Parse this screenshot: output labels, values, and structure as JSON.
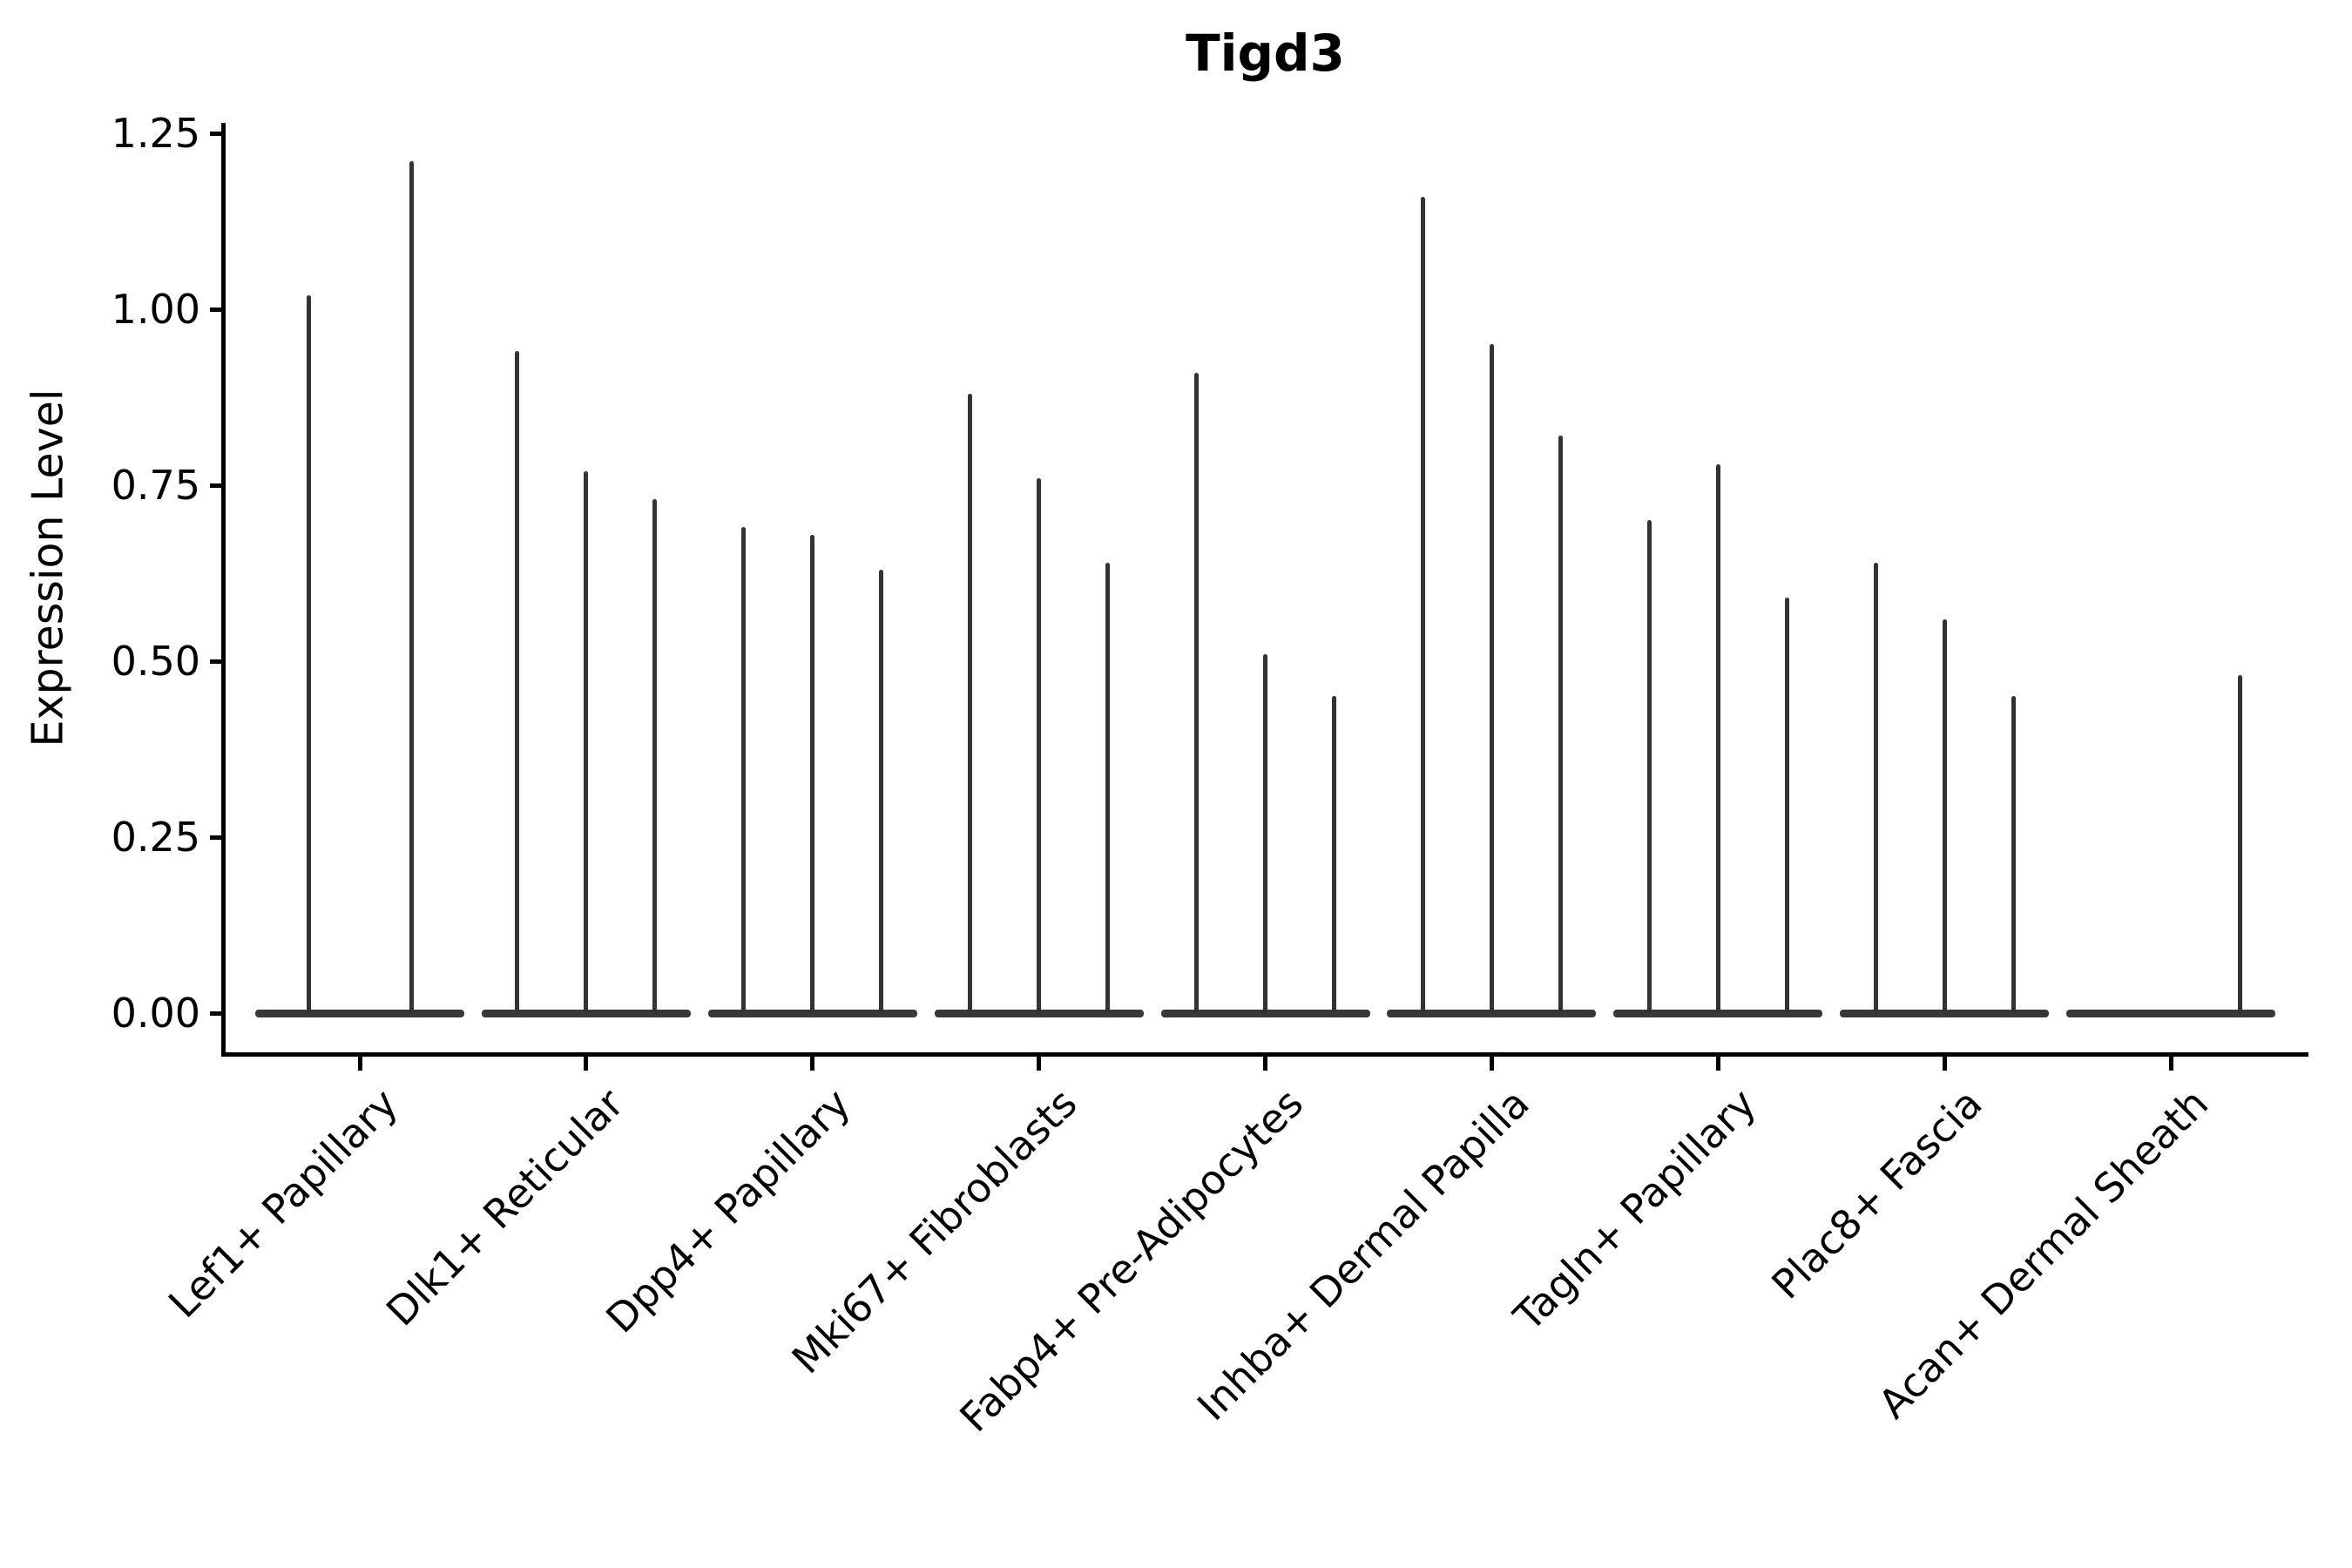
{
  "chart_data": {
    "type": "violin",
    "title": "Tigd3",
    "ylabel": "Expression Level",
    "ylim": [
      0,
      1.25
    ],
    "grid": false,
    "legend": "none",
    "ytick_labels": [
      "0.00",
      "0.25",
      "0.50",
      "0.75",
      "1.00",
      "1.25"
    ],
    "ytick_values": [
      0,
      0.25,
      0.5,
      0.75,
      1.0,
      1.25
    ],
    "categories": [
      "Lef1+ Papillary",
      "Dlk1+ Reticular",
      "Dpp4+ Papillary",
      "Mki67+ Fibroblasts",
      "Fabp4+ Pre-Adipocytes",
      "Inhba+ Dermal Papilla",
      "Tagln+ Papillary",
      "Plac8+ Fascia",
      "Acan+ Dermal Sheath"
    ],
    "groups": [
      {
        "category": "Lef1+ Papillary",
        "violins": [
          {
            "offset": -59,
            "max": 1.02
          },
          {
            "offset": 59,
            "max": 1.21
          }
        ]
      },
      {
        "category": "Dlk1+ Reticular",
        "violins": [
          {
            "offset": -79,
            "max": 0.94
          },
          {
            "offset": 0,
            "max": 0.77
          },
          {
            "offset": 79,
            "max": 0.73
          }
        ]
      },
      {
        "category": "Dpp4+ Papillary",
        "violins": [
          {
            "offset": -79,
            "max": 0.69
          },
          {
            "offset": 0,
            "max": 0.68
          },
          {
            "offset": 79,
            "max": 0.63
          }
        ]
      },
      {
        "category": "Mki67+ Fibroblasts",
        "violins": [
          {
            "offset": -79,
            "max": 0.88
          },
          {
            "offset": 0,
            "max": 0.76
          },
          {
            "offset": 79,
            "max": 0.64
          }
        ]
      },
      {
        "category": "Fabp4+ Pre-Adipocytes",
        "violins": [
          {
            "offset": -79,
            "max": 0.91
          },
          {
            "offset": 0,
            "max": 0.51
          },
          {
            "offset": 79,
            "max": 0.45
          }
        ]
      },
      {
        "category": "Inhba+ Dermal Papilla",
        "violins": [
          {
            "offset": -79,
            "max": 1.16
          },
          {
            "offset": 0,
            "max": 0.95
          },
          {
            "offset": 79,
            "max": 0.82
          }
        ]
      },
      {
        "category": "Tagln+ Papillary",
        "violins": [
          {
            "offset": -79,
            "max": 0.7
          },
          {
            "offset": 0,
            "max": 0.78
          },
          {
            "offset": 79,
            "max": 0.59
          }
        ]
      },
      {
        "category": "Plac8+ Fascia",
        "violins": [
          {
            "offset": -79,
            "max": 0.64
          },
          {
            "offset": 0,
            "max": 0.56
          },
          {
            "offset": 79,
            "max": 0.45
          }
        ]
      },
      {
        "category": "Acan+ Dermal Sheath",
        "violins": [
          {
            "offset": -79,
            "max": 0.0
          },
          {
            "offset": 0,
            "max": 0.0
          },
          {
            "offset": 79,
            "max": 0.48
          }
        ]
      }
    ],
    "colors": {
      "violin": "#333333",
      "baseline": "#383838",
      "axis": "#000000",
      "background": "#ffffff"
    }
  }
}
